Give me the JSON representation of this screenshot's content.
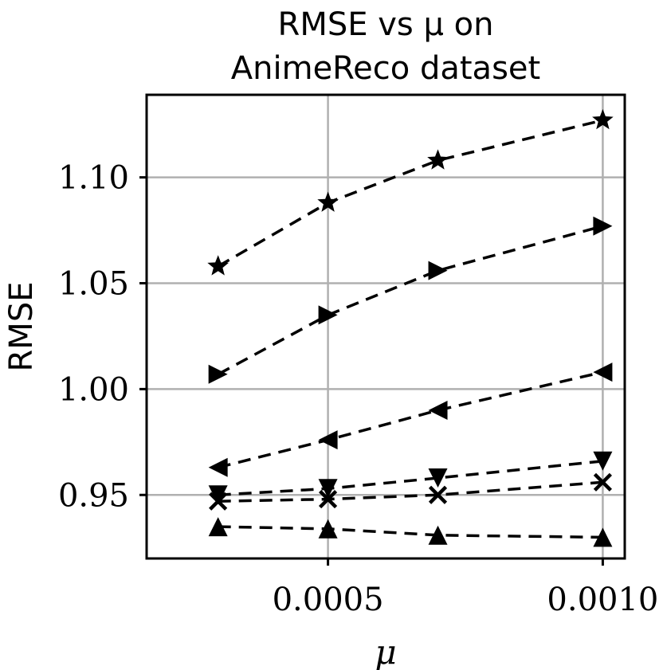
{
  "chart_data": {
    "type": "line",
    "title_line1": "RMSE vs μ on",
    "title_line2": "AnimeReco dataset",
    "xlabel": "μ",
    "ylabel": "RMSE",
    "xlim": [
      0.00017,
      0.00104
    ],
    "ylim": [
      0.92,
      1.139
    ],
    "xticks": [
      0.0005,
      0.001
    ],
    "xtick_labels": [
      "0.0005",
      "0.0010"
    ],
    "yticks": [
      0.95,
      1.0,
      1.05,
      1.1
    ],
    "ytick_labels": [
      "0.95",
      "1.00",
      "1.05",
      "1.10"
    ],
    "grid": true,
    "x": [
      0.0003,
      0.0005,
      0.0007,
      0.001
    ],
    "series": [
      {
        "marker": "star",
        "values": [
          1.058,
          1.088,
          1.108,
          1.127
        ]
      },
      {
        "marker": "triangle-right",
        "values": [
          1.007,
          1.035,
          1.056,
          1.077
        ]
      },
      {
        "marker": "triangle-left",
        "values": [
          0.963,
          0.976,
          0.99,
          1.008
        ]
      },
      {
        "marker": "triangle-down",
        "values": [
          0.95,
          0.953,
          0.958,
          0.966
        ]
      },
      {
        "marker": "x",
        "values": [
          0.947,
          0.948,
          0.95,
          0.956
        ]
      },
      {
        "marker": "triangle-up",
        "values": [
          0.935,
          0.934,
          0.931,
          0.93
        ]
      }
    ]
  }
}
